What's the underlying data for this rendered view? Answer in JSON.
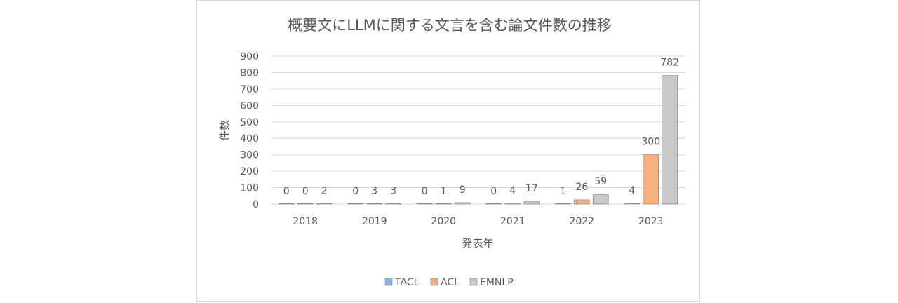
{
  "chart_data": {
    "type": "bar",
    "title": "概要文にLLMに関する文言を含む論文件数の推移",
    "xlabel": "発表年",
    "ylabel": "件数",
    "categories": [
      "2018",
      "2019",
      "2020",
      "2021",
      "2022",
      "2023"
    ],
    "ylim": [
      0,
      900
    ],
    "yticks": [
      0,
      100,
      200,
      300,
      400,
      500,
      600,
      700,
      800,
      900
    ],
    "grid": true,
    "legend_position": "bottom",
    "series": [
      {
        "name": "TACL",
        "values": [
          0,
          0,
          0,
          0,
          1,
          4
        ],
        "color": "#8fb4e3"
      },
      {
        "name": "ACL",
        "values": [
          0,
          3,
          1,
          4,
          26,
          300
        ],
        "color": "#f4b183"
      },
      {
        "name": "EMNLP",
        "values": [
          2,
          3,
          9,
          17,
          59,
          782
        ],
        "color": "#c9c9c9"
      }
    ]
  }
}
